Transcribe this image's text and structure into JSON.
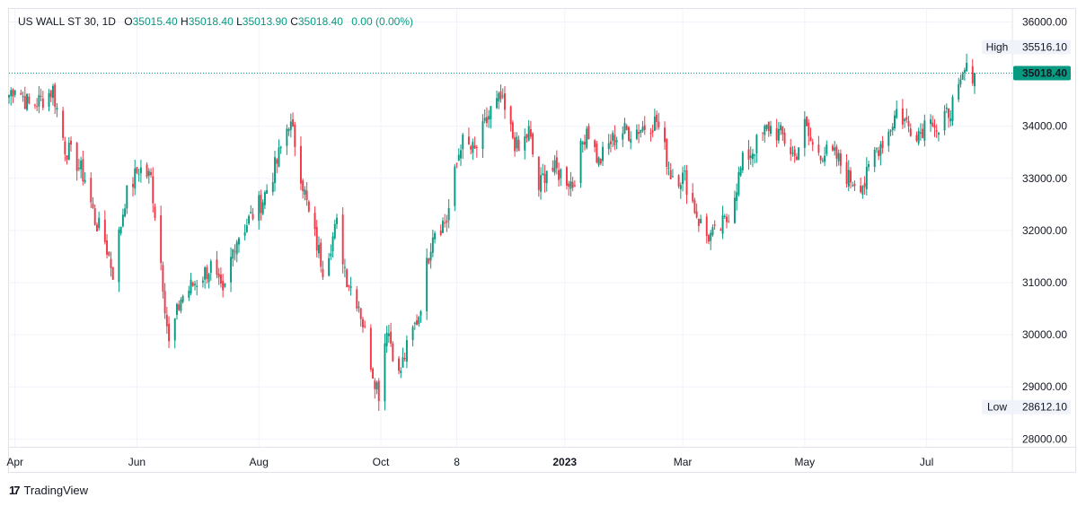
{
  "legend": {
    "symbol": "US WALL ST 30, 1D",
    "open_label": "O",
    "open": "35015.40",
    "high_label": "H",
    "high": "35018.40",
    "low_label": "L",
    "low": "35013.90",
    "close_label": "C",
    "close": "35018.40",
    "change": "0.00 (0.00%)"
  },
  "badges": {
    "high_label": "High",
    "high_value": "35516.10",
    "low_label": "Low",
    "low_value": "28612.10",
    "last_price": "35018.40"
  },
  "footer": {
    "brand": "TradingView",
    "logo_text": "17"
  },
  "colors": {
    "up": "#089981",
    "down": "#f23645",
    "grid": "#f0f3fa",
    "text": "#131722"
  },
  "chart_data": {
    "type": "candlestick",
    "symbol": "US WALL ST 30",
    "interval": "1D",
    "ylim": [
      27850,
      36250
    ],
    "y_ticks": [
      "36000.00",
      "35000.00",
      "34000.00",
      "33000.00",
      "32000.00",
      "31000.00",
      "30000.00",
      "29000.00",
      "28000.00"
    ],
    "y_tick_values": [
      36000,
      35000,
      34000,
      33000,
      32000,
      31000,
      30000,
      29000,
      28000
    ],
    "x_ticks": [
      "Apr",
      "Jun",
      "Aug",
      "Oct",
      "8",
      "2023",
      "Mar",
      "May",
      "Jul"
    ],
    "x_tick_bold": [
      false,
      false,
      false,
      false,
      false,
      true,
      false,
      false,
      false
    ],
    "x_range": [
      "2022-03-29",
      "2023-07-25"
    ],
    "x_tick_dates": [
      "2022-04-01",
      "2022-06-01",
      "2022-08-01",
      "2022-10-01",
      "2022-11-08",
      "2023-01-01",
      "2023-03-01",
      "2023-05-01",
      "2023-07-01"
    ],
    "high_marker": 35516.1,
    "low_marker": 28612.1,
    "last_price": 35018.4,
    "grid": true,
    "close_path": [
      [
        "2022-03-29",
        34600
      ],
      [
        "2022-04-01",
        34800
      ],
      [
        "2022-04-08",
        34400
      ],
      [
        "2022-04-14",
        34500
      ],
      [
        "2022-04-20",
        34700
      ],
      [
        "2022-04-26",
        33600
      ],
      [
        "2022-05-02",
        33300
      ],
      [
        "2022-05-06",
        33000
      ],
      [
        "2022-05-11",
        32200
      ],
      [
        "2022-05-16",
        31800
      ],
      [
        "2022-05-20",
        31200
      ],
      [
        "2022-05-26",
        32600
      ],
      [
        "2022-06-02",
        33200
      ],
      [
        "2022-06-08",
        33000
      ],
      [
        "2022-06-13",
        31400
      ],
      [
        "2022-06-17",
        29800
      ],
      [
        "2022-06-23",
        30700
      ],
      [
        "2022-06-30",
        31000
      ],
      [
        "2022-07-08",
        31300
      ],
      [
        "2022-07-14",
        30700
      ],
      [
        "2022-07-20",
        31800
      ],
      [
        "2022-07-27",
        32200
      ],
      [
        "2022-08-03",
        32600
      ],
      [
        "2022-08-10",
        33300
      ],
      [
        "2022-08-16",
        34100
      ],
      [
        "2022-08-19",
        33700
      ],
      [
        "2022-08-26",
        32300
      ],
      [
        "2022-09-02",
        31300
      ],
      [
        "2022-09-09",
        32100
      ],
      [
        "2022-09-14",
        31100
      ],
      [
        "2022-09-20",
        30600
      ],
      [
        "2022-09-27",
        29300
      ],
      [
        "2022-09-30",
        28900
      ],
      [
        "2022-10-04",
        30200
      ],
      [
        "2022-10-10",
        29200
      ],
      [
        "2022-10-13",
        29600
      ],
      [
        "2022-10-20",
        30400
      ],
      [
        "2022-10-27",
        32000
      ],
      [
        "2022-11-03",
        32200
      ],
      [
        "2022-11-10",
        33700
      ],
      [
        "2022-11-17",
        33500
      ],
      [
        "2022-11-25",
        34300
      ],
      [
        "2022-11-30",
        34500
      ],
      [
        "2022-12-05",
        33900
      ],
      [
        "2022-12-09",
        33500
      ],
      [
        "2022-12-14",
        33900
      ],
      [
        "2022-12-19",
        32800
      ],
      [
        "2022-12-23",
        33200
      ],
      [
        "2022-12-30",
        33100
      ],
      [
        "2023-01-05",
        32900
      ],
      [
        "2023-01-12",
        34000
      ],
      [
        "2023-01-18",
        33300
      ],
      [
        "2023-01-24",
        33700
      ],
      [
        "2023-01-30",
        33900
      ],
      [
        "2023-02-03",
        33900
      ],
      [
        "2023-02-10",
        34000
      ],
      [
        "2023-02-16",
        34100
      ],
      [
        "2023-02-23",
        33100
      ],
      [
        "2023-03-02",
        33000
      ],
      [
        "2023-03-09",
        32200
      ],
      [
        "2023-03-13",
        31900
      ],
      [
        "2023-03-17",
        31900
      ],
      [
        "2023-03-23",
        32200
      ],
      [
        "2023-03-31",
        33300
      ],
      [
        "2023-04-06",
        33600
      ],
      [
        "2023-04-13",
        34000
      ],
      [
        "2023-04-20",
        33800
      ],
      [
        "2023-04-26",
        33400
      ],
      [
        "2023-05-01",
        34000
      ],
      [
        "2023-05-05",
        33600
      ],
      [
        "2023-05-10",
        33500
      ],
      [
        "2023-05-17",
        33400
      ],
      [
        "2023-05-23",
        33000
      ],
      [
        "2023-05-31",
        32900
      ],
      [
        "2023-06-05",
        33500
      ],
      [
        "2023-06-12",
        33900
      ],
      [
        "2023-06-16",
        34300
      ],
      [
        "2023-06-22",
        34000
      ],
      [
        "2023-06-28",
        33900
      ],
      [
        "2023-07-03",
        34300
      ],
      [
        "2023-07-07",
        33800
      ],
      [
        "2023-07-12",
        34300
      ],
      [
        "2023-07-17",
        34600
      ],
      [
        "2023-07-20",
        35050
      ],
      [
        "2023-07-25",
        35018
      ]
    ]
  }
}
